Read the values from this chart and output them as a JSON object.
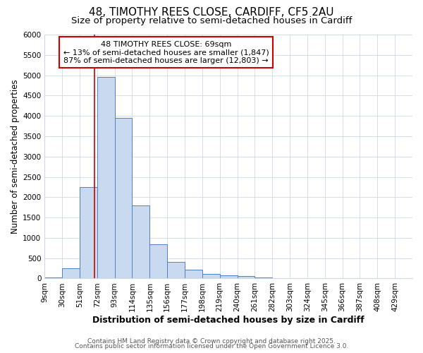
{
  "title_line1": "48, TIMOTHY REES CLOSE, CARDIFF, CF5 2AU",
  "title_line2": "Size of property relative to semi-detached houses in Cardiff",
  "xlabel": "Distribution of semi-detached houses by size in Cardiff",
  "ylabel": "Number of semi-detached properties",
  "bin_edges": [
    9,
    30,
    51,
    72,
    93,
    114,
    135,
    156,
    177,
    198,
    219,
    240,
    261,
    282,
    303,
    324,
    345,
    366,
    387,
    408,
    429,
    450
  ],
  "bin_labels": [
    "9sqm",
    "30sqm",
    "51sqm",
    "72sqm",
    "93sqm",
    "114sqm",
    "135sqm",
    "156sqm",
    "177sqm",
    "198sqm",
    "219sqm",
    "240sqm",
    "261sqm",
    "282sqm",
    "303sqm",
    "324sqm",
    "345sqm",
    "366sqm",
    "387sqm",
    "408sqm",
    "429sqm"
  ],
  "bar_heights": [
    30,
    250,
    2250,
    4950,
    3950,
    1800,
    850,
    400,
    210,
    110,
    75,
    60,
    30,
    8,
    5,
    3,
    2,
    2,
    2,
    2,
    2
  ],
  "bar_facecolor": "#c9d9f0",
  "bar_edgecolor": "#5080c0",
  "grid_color": "#d0d8e8",
  "background_color": "#ffffff",
  "vline_x": 69,
  "vline_color": "#cc0000",
  "annotation_title": "48 TIMOTHY REES CLOSE: 69sqm",
  "annotation_line2": "← 13% of semi-detached houses are smaller (1,847)",
  "annotation_line3": "87% of semi-detached houses are larger (12,803) →",
  "annotation_box_color": "#cc0000",
  "annotation_bg": "#ffffff",
  "ylim": [
    0,
    6000
  ],
  "yticks": [
    0,
    500,
    1000,
    1500,
    2000,
    2500,
    3000,
    3500,
    4000,
    4500,
    5000,
    5500,
    6000
  ],
  "footer_line1": "Contains HM Land Registry data © Crown copyright and database right 2025.",
  "footer_line2": "Contains public sector information licensed under the Open Government Licence 3.0.",
  "title_fontsize": 11,
  "subtitle_fontsize": 9.5,
  "tick_fontsize": 7.5,
  "ylabel_fontsize": 8.5,
  "xlabel_fontsize": 9,
  "annotation_fontsize": 8,
  "footer_fontsize": 6.5
}
